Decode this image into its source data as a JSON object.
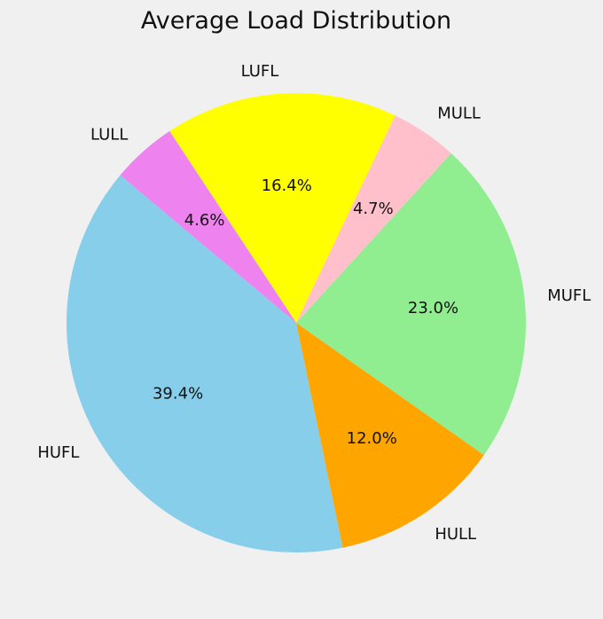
{
  "chart_data": {
    "type": "pie",
    "title": "Average Load Distribution",
    "start_angle_deg": 140,
    "direction": "counterclockwise",
    "slices": [
      {
        "label": "HUFL",
        "value": 39.4,
        "pct_label": "39.4%",
        "color": "#87ceeb"
      },
      {
        "label": "HULL",
        "value": 12.0,
        "pct_label": "12.0%",
        "color": "#ffa500"
      },
      {
        "label": "MUFL",
        "value": 23.0,
        "pct_label": "23.0%",
        "color": "#90ee90"
      },
      {
        "label": "MULL",
        "value": 4.7,
        "pct_label": "4.7%",
        "color": "#ffc0cb"
      },
      {
        "label": "LUFL",
        "value": 16.4,
        "pct_label": "16.4%",
        "color": "#ffff00"
      },
      {
        "label": "LULL",
        "value": 4.6,
        "pct_label": "4.6%",
        "color": "#ee82ee"
      }
    ]
  }
}
